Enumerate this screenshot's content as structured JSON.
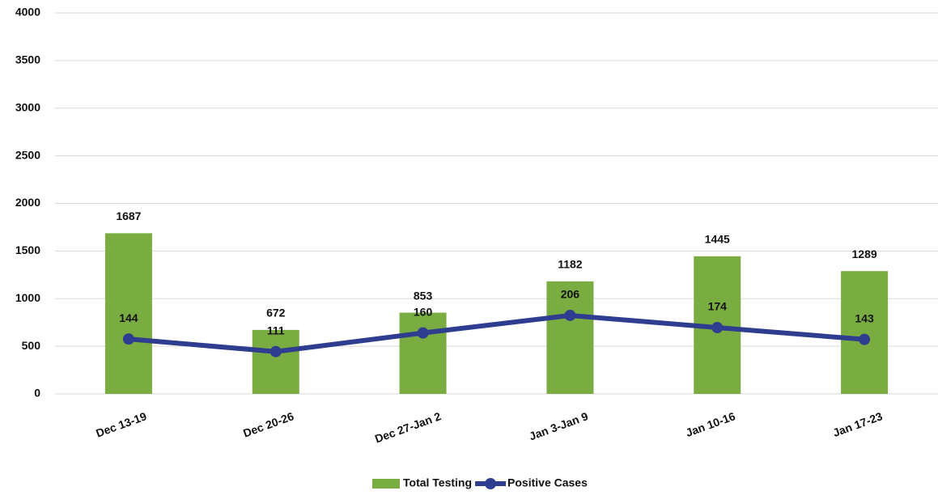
{
  "chart_data": {
    "type": "bar-line",
    "categories": [
      "Dec 13-19",
      "Dec 20-26",
      "Dec 27-Jan 2",
      "Jan 3-Jan 9",
      "Jan 10-16",
      "Jan 17-23"
    ],
    "series": [
      {
        "name": "Total Testing",
        "type": "bar",
        "color": "#7aad41",
        "values": [
          1687,
          672,
          853,
          1182,
          1445,
          1289
        ]
      },
      {
        "name": "Positive Cases",
        "type": "line",
        "axis": "y2",
        "color": "#2e3d8f",
        "values": [
          144,
          111,
          160,
          206,
          174,
          143
        ]
      }
    ],
    "ylim": [
      0,
      4000
    ],
    "yticks": [
      0,
      500,
      1000,
      1500,
      2000,
      2500,
      3000,
      3500,
      4000
    ],
    "y2lim": [
      0,
      1000
    ],
    "grid": true,
    "legend": "bottom"
  }
}
